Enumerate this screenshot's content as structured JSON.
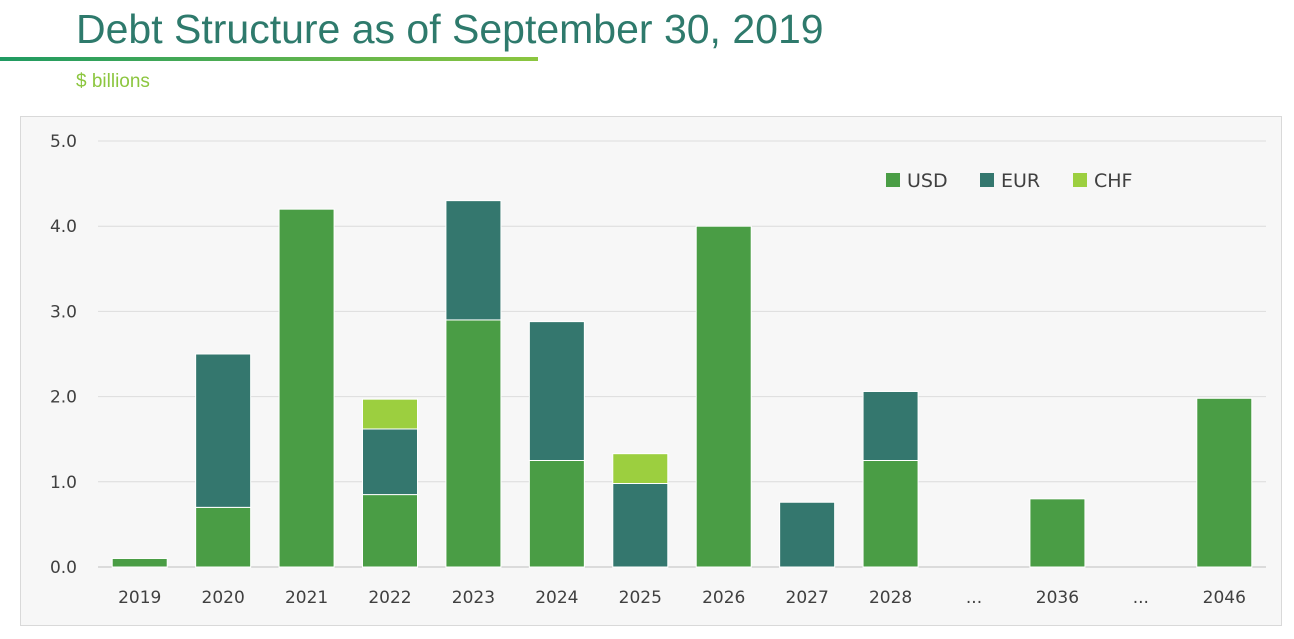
{
  "header": {
    "title": "Debt Structure as of September 30, 2019",
    "subtitle": "$ billions"
  },
  "chart_data": {
    "type": "bar",
    "stacked": true,
    "title": "",
    "xlabel": "",
    "ylabel": "",
    "ylim": [
      0,
      5.0
    ],
    "yticks": [
      "0.0",
      "1.0",
      "2.0",
      "3.0",
      "4.0",
      "5.0"
    ],
    "grid": true,
    "legend_position": "top-right",
    "categories": [
      "2019",
      "2020",
      "2021",
      "2022",
      "2023",
      "2024",
      "2025",
      "2026",
      "2027",
      "2028",
      "...",
      "2036",
      "...",
      "2046"
    ],
    "series": [
      {
        "name": "USD",
        "color": "#4a9d45",
        "values": [
          0.1,
          0.7,
          4.2,
          0.85,
          2.9,
          1.25,
          0,
          4.0,
          0,
          1.25,
          0,
          0.8,
          0,
          1.98
        ]
      },
      {
        "name": "EUR",
        "color": "#34776e",
        "values": [
          0,
          1.8,
          0,
          0.77,
          1.4,
          1.63,
          0.98,
          0,
          0.76,
          0.81,
          0,
          0,
          0,
          0
        ]
      },
      {
        "name": "CHF",
        "color": "#9ccf3f",
        "values": [
          0,
          0,
          0,
          0.35,
          0,
          0,
          0.35,
          0,
          0,
          0,
          0,
          0,
          0,
          0
        ]
      }
    ]
  }
}
